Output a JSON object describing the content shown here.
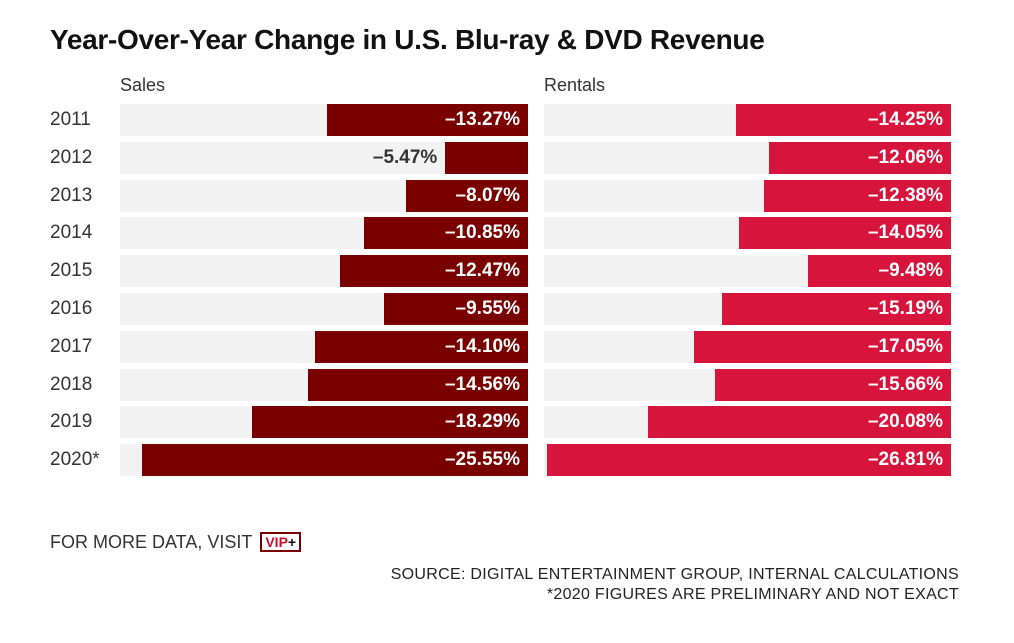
{
  "chart_data": {
    "type": "bar",
    "title": "Year-Over-Year Change in U.S. Blu-ray & DVD Revenue",
    "categories": [
      "2011",
      "2012",
      "2013",
      "2014",
      "2015",
      "2016",
      "2017",
      "2018",
      "2019",
      "2020*"
    ],
    "series": [
      {
        "name": "Sales",
        "color": "#7a0000",
        "values": [
          -13.27,
          -5.47,
          -8.07,
          -10.85,
          -12.47,
          -9.55,
          -14.1,
          -14.56,
          -18.29,
          -25.55
        ],
        "labels": [
          "–13.27%",
          "–5.47%",
          "–8.07%",
          "–10.85%",
          "–12.47%",
          "–9.55%",
          "–14.10%",
          "–14.56%",
          "–18.29%",
          "–25.55%"
        ]
      },
      {
        "name": "Rentals",
        "color": "#d7143c",
        "values": [
          -14.25,
          -12.06,
          -12.38,
          -14.05,
          -9.48,
          -15.19,
          -17.05,
          -15.66,
          -20.08,
          -26.81
        ],
        "labels": [
          "–14.25%",
          "–12.06%",
          "–12.38%",
          "–14.05%",
          "–9.48%",
          "–15.19%",
          "–17.05%",
          "–15.66%",
          "–20.08%",
          "–26.81%"
        ]
      }
    ],
    "xlim": [
      -27,
      0
    ],
    "xlabel": "",
    "ylabel": "",
    "grid": false,
    "legend": "none"
  },
  "footer": {
    "more_data": "FOR MORE DATA, VISIT",
    "vip_logo": "VIP+",
    "source": "SOURCE: DIGITAL ENTERTAINMENT GROUP, INTERNAL CALCULATIONS",
    "note": "*2020 FIGURES ARE PRELIMINARY AND NOT EXACT"
  }
}
